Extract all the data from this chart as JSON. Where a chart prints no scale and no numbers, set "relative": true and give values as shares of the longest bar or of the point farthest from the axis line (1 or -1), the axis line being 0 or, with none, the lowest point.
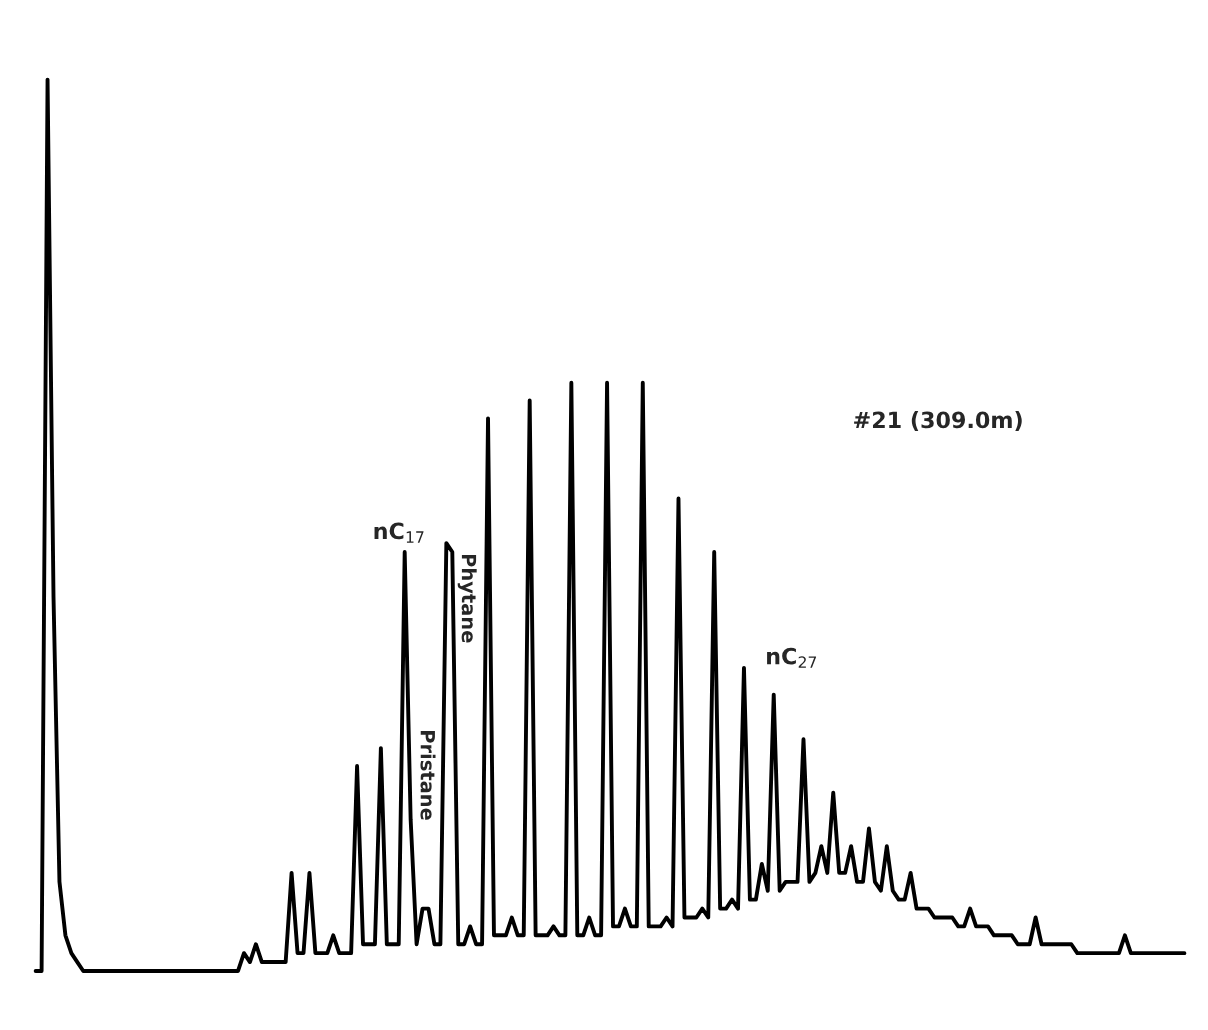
{
  "chart_data": {
    "type": "line",
    "relative": true,
    "marker": "none",
    "line_style": "solid",
    "annotations": [
      "nC$_{17}$",
      "Pristane",
      "Phytane",
      "nC$_{27}$",
      "#21 (309.0m)"
    ],
    "categories": [
      null,
      null,
      null,
      null,
      null,
      null,
      null,
      null,
      null,
      null,
      null,
      null,
      null,
      null,
      null,
      null,
      null,
      null,
      null,
      null,
      null,
      null,
      null,
      null,
      null,
      null,
      null,
      null,
      null,
      null,
      null,
      null,
      null,
      null,
      null,
      null,
      null,
      null,
      null,
      null,
      null,
      null,
      null,
      null,
      null,
      null,
      null,
      null,
      null,
      null,
      null,
      null,
      null,
      null,
      null,
      null,
      null,
      null,
      null,
      null,
      null,
      null,
      null,
      null,
      null,
      null,
      null,
      null,
      null,
      null,
      null,
      null,
      null,
      null,
      null,
      null,
      null,
      null,
      null,
      null,
      null,
      null,
      null,
      null,
      null,
      null,
      null,
      null,
      null,
      null,
      null,
      null,
      null,
      null,
      null,
      null,
      null,
      null,
      null,
      null,
      null,
      null,
      null,
      null,
      null,
      null,
      null,
      null,
      null,
      null,
      null,
      null,
      null,
      null,
      null,
      null,
      null,
      null,
      null,
      null,
      null,
      null,
      null,
      null,
      null,
      null,
      null,
      null,
      null,
      null,
      null,
      null,
      null,
      null,
      null,
      null,
      null,
      null,
      null,
      null,
      null,
      null,
      null,
      null,
      null,
      null,
      null,
      null,
      null,
      null,
      null,
      null,
      null,
      null,
      null,
      null,
      null,
      null,
      null,
      null,
      null,
      null,
      null,
      null,
      null,
      null,
      null,
      null,
      null,
      null,
      null,
      null,
      null,
      null,
      null,
      null,
      null,
      null,
      null,
      null,
      null,
      null,
      null,
      null,
      null,
      null,
      null,
      null,
      null,
      null,
      null,
      null,
      null,
      null
    ],
    "series": [
      {
        "color": "#000000",
        "values": [
          0,
          0,
          1.0,
          0.42,
          0.1,
          0.04,
          0.02,
          0.01,
          0,
          0,
          0,
          0,
          0,
          0,
          0,
          0,
          0,
          0,
          0,
          0,
          0,
          0,
          0,
          0,
          0,
          0,
          0,
          0,
          0,
          0,
          0,
          0,
          0,
          0,
          0,
          0.02,
          0.01,
          0.03,
          0.01,
          0.01,
          0.01,
          0.01,
          0.01,
          0.11,
          0.02,
          0.02,
          0.11,
          0.02,
          0.02,
          0.02,
          0.04,
          0.02,
          0.02,
          0.02,
          0.23,
          0.03,
          0.03,
          0.03,
          0.25,
          0.03,
          0.03,
          0.03,
          0.47,
          0.17,
          0.03,
          0.07,
          0.07,
          0.03,
          0.03,
          0.48,
          0.47,
          0.03,
          0.03,
          0.05,
          0.03,
          0.03,
          0.62,
          0.04,
          0.04,
          0.04,
          0.06,
          0.04,
          0.04,
          0.64,
          0.04,
          0.04,
          0.04,
          0.05,
          0.04,
          0.04,
          0.66,
          0.04,
          0.04,
          0.06,
          0.04,
          0.04,
          0.66,
          0.05,
          0.05,
          0.07,
          0.05,
          0.05,
          0.66,
          0.05,
          0.05,
          0.05,
          0.06,
          0.05,
          0.53,
          0.06,
          0.06,
          0.06,
          0.07,
          0.06,
          0.47,
          0.07,
          0.07,
          0.08,
          0.07,
          0.34,
          0.08,
          0.08,
          0.12,
          0.09,
          0.31,
          0.09,
          0.1,
          0.1,
          0.1,
          0.26,
          0.1,
          0.11,
          0.14,
          0.11,
          0.2,
          0.11,
          0.11,
          0.14,
          0.1,
          0.1,
          0.16,
          0.1,
          0.09,
          0.14,
          0.09,
          0.08,
          0.08,
          0.11,
          0.07,
          0.07,
          0.07,
          0.06,
          0.06,
          0.06,
          0.06,
          0.05,
          0.05,
          0.07,
          0.05,
          0.05,
          0.05,
          0.04,
          0.04,
          0.04,
          0.04,
          0.03,
          0.03,
          0.03,
          0.06,
          0.03,
          0.03,
          0.03,
          0.03,
          0.03,
          0.03,
          0.02,
          0.02,
          0.02,
          0.02,
          0.02,
          0.02,
          0.02,
          0.02,
          0.04,
          0.02,
          0.02,
          0.02,
          0.02,
          0.02,
          0.02,
          0.02,
          0.02,
          0.02,
          0.02
        ]
      }
    ]
  }
}
